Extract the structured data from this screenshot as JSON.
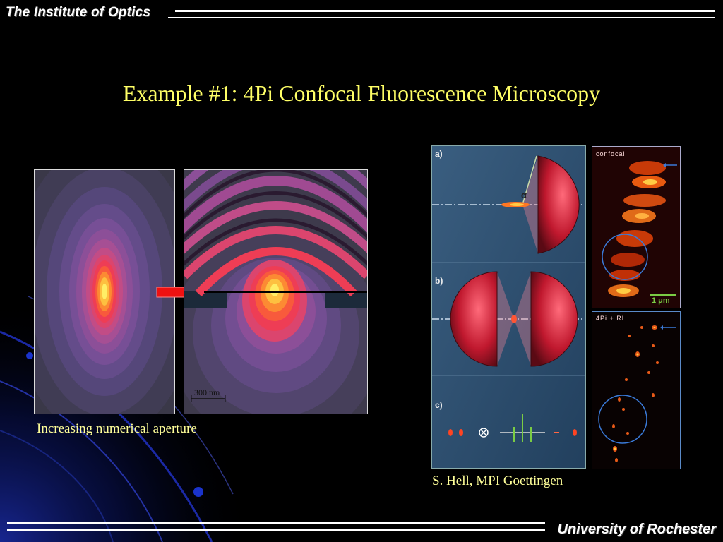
{
  "header": {
    "org": "The Institute of Optics"
  },
  "footer": {
    "org": "University of Rochester"
  },
  "slide": {
    "title": "Example #1:  4Pi Confocal Fluorescence Microscopy"
  },
  "left_figure": {
    "scale_bar": "300 nm",
    "caption": "Increasing numerical aperture"
  },
  "right_figure": {
    "panel_labels": [
      "a)",
      "b)",
      "c)"
    ],
    "angle_symbol": "α",
    "confocal_label": "confocal",
    "scale_bar": "1 μm",
    "rl_label": "4Pi + RL",
    "caption": "S. Hell, MPI Goettingen"
  },
  "colors": {
    "title": "#ffff66",
    "caption": "#ffff99",
    "background": "#000000"
  }
}
